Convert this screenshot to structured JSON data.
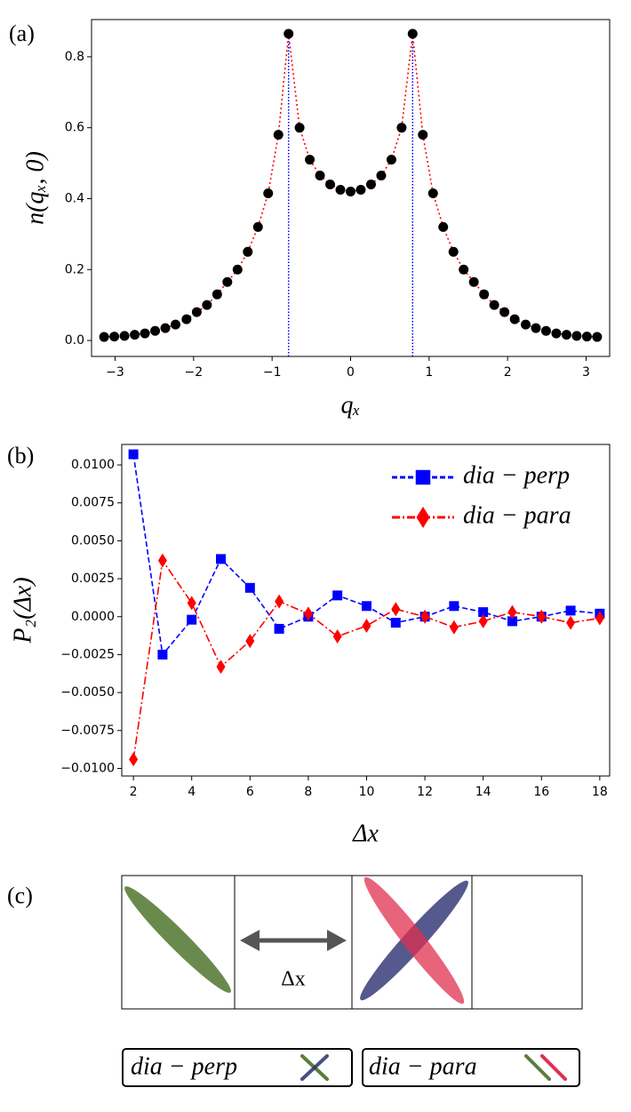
{
  "chart_data": [
    {
      "type": "line",
      "panel_label": "(a)",
      "xlabel": "qₓ",
      "ylabel": "n(qₓ, 0)",
      "x": [
        -3.14,
        -3.01,
        -2.88,
        -2.75,
        -2.62,
        -2.49,
        -2.36,
        -2.23,
        -2.09,
        -1.96,
        -1.83,
        -1.7,
        -1.57,
        -1.44,
        -1.31,
        -1.18,
        -1.05,
        -0.92,
        -0.79,
        -0.65,
        -0.52,
        -0.39,
        -0.26,
        -0.13,
        0,
        0.13,
        0.26,
        0.39,
        0.52,
        0.65,
        0.79,
        0.92,
        1.05,
        1.18,
        1.31,
        1.44,
        1.57,
        1.7,
        1.83,
        1.96,
        2.09,
        2.23,
        2.36,
        2.49,
        2.62,
        2.75,
        2.88,
        3.01,
        3.14
      ],
      "series": [
        {
          "color": "#ff0000",
          "marker_color": "#000000",
          "marker": "circle",
          "linestyle": "dotted",
          "values": [
            0.01,
            0.011,
            0.013,
            0.016,
            0.02,
            0.027,
            0.035,
            0.045,
            0.06,
            0.08,
            0.1,
            0.13,
            0.165,
            0.2,
            0.25,
            0.32,
            0.415,
            0.58,
            0.865,
            0.6,
            0.51,
            0.465,
            0.44,
            0.425,
            0.42,
            0.425,
            0.44,
            0.465,
            0.51,
            0.6,
            0.865,
            0.58,
            0.415,
            0.32,
            0.25,
            0.2,
            0.165,
            0.13,
            0.1,
            0.08,
            0.06,
            0.045,
            0.035,
            0.027,
            0.02,
            0.016,
            0.013,
            0.011,
            0.01
          ]
        }
      ],
      "vlines": [
        {
          "x": -0.79,
          "y": 0.865
        },
        {
          "x": 0.79,
          "y": 0.865
        }
      ],
      "vline_color": "#0000ff",
      "xlim": [
        -3.3,
        3.3
      ],
      "ylim": [
        -0.045,
        0.905
      ],
      "xticks": [
        {
          "value": -3,
          "label": "−3"
        },
        {
          "value": -2,
          "label": "−2"
        },
        {
          "value": -1,
          "label": "−1"
        },
        0,
        1,
        2,
        3
      ],
      "yticks": [
        {
          "value": 0,
          "label": "0.0"
        },
        0.2,
        0.4,
        0.6,
        0.8
      ]
    },
    {
      "type": "line",
      "panel_label": "(b)",
      "xlabel": "Δx",
      "ylabel": "P₂(Δx)",
      "legend": "upper right",
      "x": [
        2,
        3,
        4,
        5,
        6,
        7,
        8,
        9,
        10,
        11,
        12,
        13,
        14,
        15,
        16,
        17,
        18
      ],
      "series": [
        {
          "name": "dia − perp",
          "color": "#0000ff",
          "marker_color": "#0000ff",
          "marker": "square",
          "linestyle": "dashed",
          "values": [
            0.0107,
            -0.0025,
            -0.0002,
            0.0038,
            0.0019,
            -0.0008,
            0.0,
            0.0014,
            0.0007,
            -0.0004,
            0.0,
            0.0007,
            0.0003,
            -0.0003,
            0.0,
            0.0004,
            0.0002
          ]
        },
        {
          "name": "dia − para",
          "color": "#ff0000",
          "marker_color": "#ff0000",
          "marker": "diamond",
          "linestyle": "dashdot",
          "values": [
            -0.0094,
            0.0037,
            0.0009,
            -0.0033,
            -0.0016,
            0.001,
            0.0002,
            -0.0013,
            -0.0006,
            0.0005,
            0.0,
            -0.0007,
            -0.0003,
            0.0003,
            0.0,
            -0.0004,
            -0.0001
          ]
        }
      ],
      "xlim": [
        1.6,
        18.34
      ],
      "ylim": [
        -0.0105,
        0.01135
      ],
      "xticks": [
        2,
        4,
        6,
        8,
        10,
        12,
        14,
        16,
        18
      ],
      "yticks": [
        {
          "value": -0.01,
          "label": "−0.0100"
        },
        {
          "value": -0.0075,
          "label": "−0.0075"
        },
        {
          "value": -0.005,
          "label": "−0.0050"
        },
        {
          "value": -0.0025,
          "label": "−0.0025"
        },
        {
          "value": 0,
          "label": "0.0000"
        },
        {
          "value": 0.0025,
          "label": "0.0025"
        },
        {
          "value": 0.005,
          "label": "0.0050"
        },
        {
          "value": 0.0075,
          "label": "0.0075"
        },
        {
          "value": 0.01,
          "label": "0.0100"
        }
      ]
    }
  ],
  "diagram": {
    "label": "(c)",
    "arrow_label": "Δx",
    "legend": [
      "dia − perp",
      "dia − para"
    ]
  }
}
